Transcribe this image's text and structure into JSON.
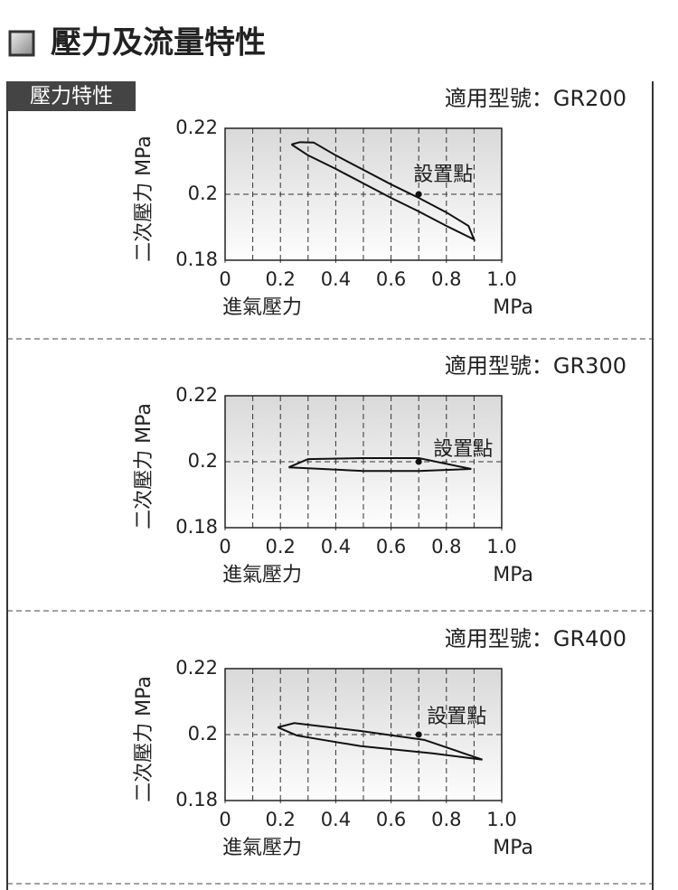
{
  "header": {
    "title": "壓力及流量特性",
    "section": "壓力特性"
  },
  "chart_data": [
    {
      "type": "line",
      "title": "適用型號：GR200",
      "y_label": "二次壓力 MPa",
      "x_label": "進氣壓力",
      "x_unit": "MPa",
      "xlim": [
        0,
        1
      ],
      "ylim": [
        0.18,
        0.22
      ],
      "xticks": [
        0,
        0.2,
        0.4,
        0.6,
        0.8,
        {
          "value": 1,
          "label": "1.0"
        }
      ],
      "yticks": [
        0.18,
        0.2,
        0.22
      ],
      "xgrid": [
        0.1,
        0.2,
        0.3,
        0.4,
        0.5,
        0.6,
        0.7,
        0.8,
        0.9
      ],
      "series": [
        {
          "color": "#111111",
          "x": [
            0.24,
            0.27,
            0.32,
            0.4,
            0.5,
            0.6,
            0.7,
            0.8,
            0.88,
            0.9,
            0.8,
            0.7,
            0.6,
            0.5,
            0.4,
            0.3,
            0.24
          ],
          "values": [
            0.2151,
            0.2158,
            0.2157,
            0.2118,
            0.2074,
            0.203,
            0.1989,
            0.1945,
            0.1904,
            0.1863,
            0.1904,
            0.1948,
            0.1989,
            0.2033,
            0.2077,
            0.2118,
            0.2151
          ]
        }
      ],
      "annotation": {
        "text": "設置點",
        "x": 0.7,
        "y": 0.2
      }
    },
    {
      "type": "line",
      "title": "適用型號：GR300",
      "y_label": "二次壓力 MPa",
      "x_label": "進氣壓力",
      "x_unit": "MPa",
      "xlim": [
        0,
        1
      ],
      "ylim": [
        0.18,
        0.22
      ],
      "xticks": [
        0,
        0.2,
        0.4,
        0.6,
        0.8,
        {
          "value": 1,
          "label": "1.0"
        }
      ],
      "yticks": [
        0.18,
        0.2,
        0.22
      ],
      "xgrid": [
        0.1,
        0.2,
        0.3,
        0.4,
        0.5,
        0.6,
        0.7,
        0.8,
        0.9
      ],
      "series": [
        {
          "color": "#111111",
          "x": [
            0.23,
            0.3,
            0.5,
            0.7,
            0.89,
            0.7,
            0.5,
            0.3,
            0.23
          ],
          "values": [
            0.1983,
            0.2008,
            0.2011,
            0.2011,
            0.1978,
            0.1972,
            0.1972,
            0.198,
            0.1983
          ]
        }
      ],
      "annotation": {
        "text": "設置點",
        "x": 0.7,
        "y": 0.2
      }
    },
    {
      "type": "line",
      "title": "適用型號：GR400",
      "y_label": "二次壓力 MPa",
      "x_label": "進氣壓力",
      "x_unit": "MPa",
      "xlim": [
        0,
        1
      ],
      "ylim": [
        0.18,
        0.22
      ],
      "xticks": [
        0,
        0.2,
        0.4,
        0.6,
        0.8,
        {
          "value": 1,
          "label": "1.0"
        }
      ],
      "yticks": [
        0.18,
        0.2,
        0.22
      ],
      "xgrid": [
        0.1,
        0.2,
        0.3,
        0.4,
        0.5,
        0.6,
        0.7,
        0.8,
        0.9
      ],
      "series": [
        {
          "color": "#111111",
          "x": [
            0.19,
            0.25,
            0.49,
            0.72,
            0.93,
            0.75,
            0.49,
            0.26,
            0.19
          ],
          "values": [
            0.2022,
            0.2035,
            0.2011,
            0.1984,
            0.1924,
            0.1943,
            0.1965,
            0.1997,
            0.2022
          ]
        }
      ],
      "annotation": {
        "text": "設置點",
        "x": 0.7,
        "y": 0.2
      }
    }
  ]
}
